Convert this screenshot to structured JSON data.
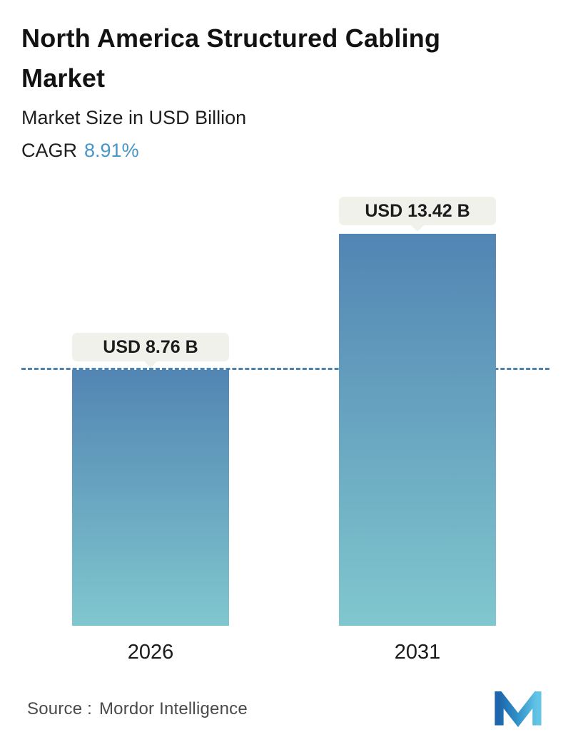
{
  "header": {
    "title": "North America Structured Cabling Market",
    "subtitle": "Market Size in USD Billion",
    "cagr_label": "CAGR",
    "cagr_value": "8.91%"
  },
  "chart_data": {
    "type": "bar",
    "categories": [
      "2026",
      "2031"
    ],
    "values": [
      8.76,
      13.42
    ],
    "value_labels": [
      "USD 8.76 B",
      "USD 13.42 B"
    ],
    "title": "North America Structured Cabling Market",
    "ylabel": "Market Size in USD Billion",
    "cagr": "8.91%",
    "ylim": [
      0,
      13.42
    ],
    "grid": false,
    "legend": "none",
    "dashed_line_value": 8.76,
    "colors": {
      "bar_gradient_top": "#5285b3",
      "bar_gradient_bottom": "#80c7ce",
      "dashed_line": "#4b83ad",
      "bubble_background": "#f1f1eb",
      "cagr_accent": "#4796c8"
    }
  },
  "footer": {
    "source_label": "Source :",
    "source_value": "Mordor Intelligence",
    "logo": "mordor-intelligence-logo"
  }
}
